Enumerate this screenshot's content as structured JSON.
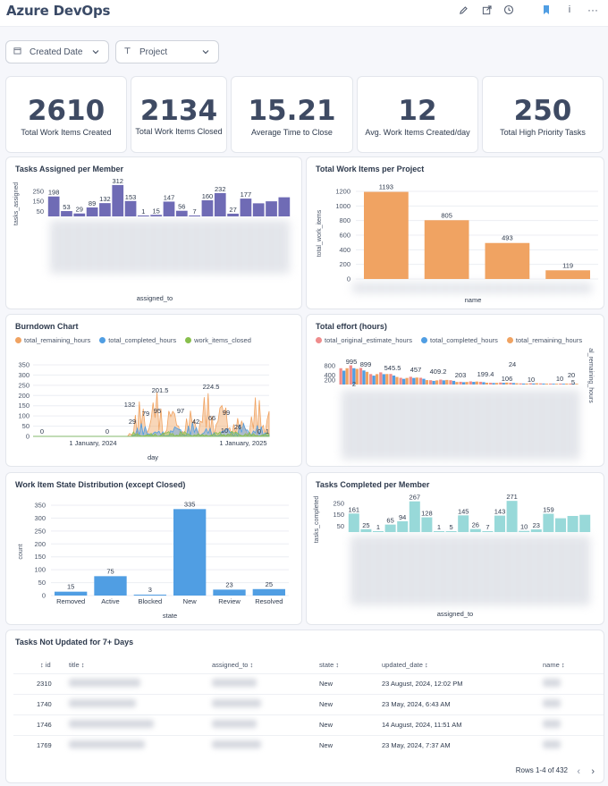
{
  "app": {
    "title": "Azure DevOps"
  },
  "toolbar": {
    "icons": [
      "edit-icon",
      "share-icon",
      "history-icon",
      "bookmark-icon",
      "info-icon",
      "more-icon"
    ],
    "info_glyph": "i",
    "more_glyph": "···"
  },
  "filters": [
    {
      "label": "Created Date",
      "icon": "calendar-icon"
    },
    {
      "label": "Project",
      "icon": "text-type-icon"
    }
  ],
  "kpis": [
    {
      "value": "2610",
      "label": "Total Work Items Created"
    },
    {
      "value": "2134",
      "label": "Total Work Items Closed"
    },
    {
      "value": "15.21",
      "label": "Average Time to Close"
    },
    {
      "value": "12",
      "label": "Avg. Work Items Created/day"
    },
    {
      "value": "250",
      "label": "Total High Priority Tasks"
    }
  ],
  "colors": {
    "purple": "#6f6bb5",
    "orange": "#f0a362",
    "blue": "#509ee3",
    "green": "#88bf4d",
    "red": "#ef8c8c",
    "teal": "#98d9d9"
  },
  "charts": {
    "tasks_assigned": {
      "title": "Tasks Assigned per Member",
      "chart_data": {
        "type": "bar",
        "ylabel": "tasks_assigned",
        "xlabel": "assigned_to",
        "y_ticks": [
          250,
          150,
          50
        ],
        "ylim": [
          0,
          320
        ],
        "values": [
          198,
          53,
          29,
          89,
          132,
          312,
          153,
          1,
          15,
          147,
          56,
          7,
          160,
          232,
          27,
          177
        ],
        "labels": [
          "198",
          "53",
          "29",
          "89",
          "132",
          "312",
          "153",
          "1",
          "15",
          "147",
          "56",
          "7",
          "160",
          "232",
          "27",
          "177"
        ],
        "extra_values": [
          130,
          150,
          190
        ]
      }
    },
    "work_items_project": {
      "title": "Total Work Items per Project",
      "chart_data": {
        "type": "bar",
        "ylabel": "total_work_items",
        "xlabel": "name",
        "y_ticks": [
          1200,
          1000,
          800,
          600,
          400,
          200,
          0
        ],
        "ylim": [
          0,
          1200
        ],
        "values": [
          1193,
          805,
          493,
          119
        ],
        "labels": [
          "1193",
          "805",
          "493",
          "119"
        ]
      }
    },
    "burndown": {
      "title": "Burndown Chart",
      "legend": [
        {
          "name": "total_remaining_hours",
          "color": "#f0a362"
        },
        {
          "name": "total_completed_hours",
          "color": "#509ee3"
        },
        {
          "name": "work_items_closed",
          "color": "#88bf4d"
        }
      ],
      "chart_data": {
        "type": "area",
        "xlabel": "day",
        "y_ticks": [
          350,
          300,
          250,
          200,
          150,
          100,
          50,
          0
        ],
        "ylim": [
          0,
          350
        ],
        "x_ticks": [
          "1 January, 2024",
          "1 January, 2025"
        ],
        "annotations": [
          "0",
          "0",
          "132",
          "29",
          "79",
          "95",
          "201.5",
          "97",
          "42",
          "66",
          "224.5",
          "99",
          "26",
          "10",
          "0",
          "1"
        ]
      }
    },
    "total_effort": {
      "title": "Total effort (hours)",
      "legend": [
        {
          "name": "total_original_estimate_hours",
          "color": "#ef8c8c"
        },
        {
          "name": "total_completed_hours",
          "color": "#509ee3"
        },
        {
          "name": "total_remaining_hours",
          "color": "#f0a362"
        }
      ],
      "chart_data": {
        "type": "bar",
        "y_ticks": [
          800,
          400,
          200
        ],
        "y2label": "al_remaining_hours",
        "annotations": [
          "995",
          "899",
          "2",
          "545.5",
          "457",
          "409.2",
          "203",
          "199.4",
          "24",
          "106",
          "10",
          "10",
          "20",
          "5"
        ]
      }
    },
    "state_distribution": {
      "title": "Work Item State Distribution (except Closed)",
      "chart_data": {
        "type": "bar",
        "ylabel": "count",
        "xlabel": "state",
        "y_ticks": [
          350,
          300,
          250,
          200,
          150,
          100,
          50,
          0
        ],
        "ylim": [
          0,
          350
        ],
        "categories": [
          "Removed",
          "Active",
          "Blocked",
          "New",
          "Review",
          "Resolved"
        ],
        "values": [
          15,
          75,
          3,
          335,
          23,
          25
        ],
        "labels": [
          "15",
          "75",
          "3",
          "335",
          "23",
          "25"
        ]
      }
    },
    "tasks_completed": {
      "title": "Tasks Completed per Member",
      "chart_data": {
        "type": "bar",
        "ylabel": "tasks_completed",
        "xlabel": "assigned_to",
        "y_ticks": [
          250,
          150,
          50
        ],
        "ylim": [
          0,
          280
        ],
        "values": [
          161,
          25,
          1,
          65,
          94,
          267,
          128,
          1,
          5,
          145,
          26,
          7,
          143,
          271,
          10,
          23,
          159
        ],
        "labels": [
          "161",
          "25",
          "1",
          "65",
          "94",
          "267",
          "128",
          "1",
          "5",
          "145",
          "26",
          "7",
          "143",
          "271",
          "10",
          "23",
          "159"
        ],
        "extra_values": [
          120,
          140,
          150
        ]
      }
    }
  },
  "table": {
    "title": "Tasks Not Updated for 7+ Days",
    "columns": [
      "id",
      "title",
      "assigned_to",
      "state",
      "updated_date",
      "name"
    ],
    "rows": [
      {
        "id": "2310",
        "state": "New",
        "updated_date": "23 August, 2024, 12:02 PM"
      },
      {
        "id": "1740",
        "state": "New",
        "updated_date": "23 May, 2024, 6:43 AM"
      },
      {
        "id": "1746",
        "state": "New",
        "updated_date": "14 August, 2024, 11:51 AM"
      },
      {
        "id": "1769",
        "state": "New",
        "updated_date": "23 May, 2024, 7:37 AM"
      }
    ],
    "footer": "Rows 1-4 of 432"
  }
}
